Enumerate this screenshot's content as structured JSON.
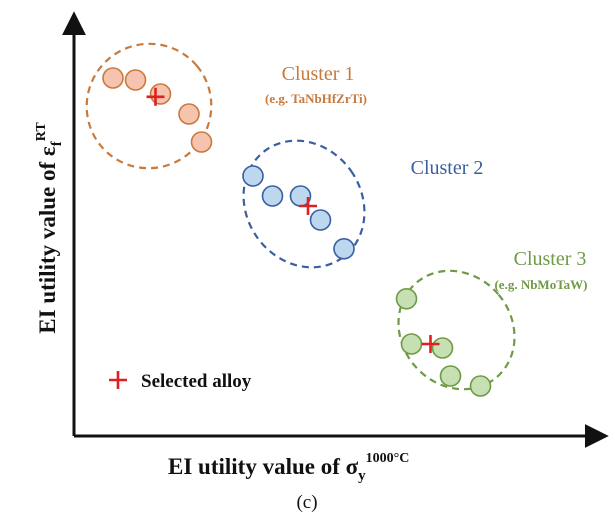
{
  "chart_data": {
    "type": "scatter",
    "title": "",
    "xlabel": {
      "main": "EI utility value of σ",
      "sub": "y",
      "sup": "1000°C"
    },
    "ylabel": {
      "main": "EI utility value of ε",
      "sub": "f",
      "sup": "RT"
    },
    "xlim": [
      0,
      10
    ],
    "ylim": [
      0,
      10
    ],
    "grid": false,
    "ticks": false,
    "caption": "(c)",
    "legend": {
      "placement": "bottom-left",
      "marker": "+",
      "label": "Selected alloy",
      "color": "#e02020"
    },
    "clusters": [
      {
        "name": "Cluster 1",
        "example": "(e.g. TaNbHfZrTi)",
        "color": "#c77a3e",
        "fill": "#f6c4ae",
        "ellipse": {
          "cx": 1.5,
          "cy": 8.25,
          "rx": 1.25,
          "ry": 1.55,
          "rotation": -40
        },
        "points": [
          [
            0.78,
            8.95
          ],
          [
            1.23,
            8.9
          ],
          [
            1.73,
            8.55
          ],
          [
            2.3,
            8.05
          ],
          [
            2.55,
            7.35
          ]
        ],
        "selected": [
          1.63,
          8.48
        ]
      },
      {
        "name": "Cluster 2",
        "example": "",
        "color": "#3a5fa0",
        "fill": "#bdd7ee",
        "ellipse": {
          "cx": 4.6,
          "cy": 5.8,
          "rx": 1.15,
          "ry": 1.65,
          "rotation": -35
        },
        "points": [
          [
            3.58,
            6.5
          ],
          [
            3.97,
            6.0
          ],
          [
            4.53,
            6.0
          ],
          [
            4.93,
            5.4
          ],
          [
            5.4,
            4.68
          ]
        ],
        "selected": [
          4.68,
          5.75
        ]
      },
      {
        "name": "Cluster 3",
        "example": "(e.g. NbMoTaW)",
        "color": "#6f9a45",
        "fill": "#c6e0b4",
        "ellipse": {
          "cx": 7.65,
          "cy": 2.65,
          "rx": 1.1,
          "ry": 1.55,
          "rotation": -40
        },
        "points": [
          [
            6.65,
            3.43
          ],
          [
            6.75,
            2.3
          ],
          [
            7.37,
            2.2
          ],
          [
            7.53,
            1.5
          ],
          [
            8.13,
            1.25
          ]
        ],
        "selected": [
          7.13,
          2.3
        ]
      }
    ]
  }
}
